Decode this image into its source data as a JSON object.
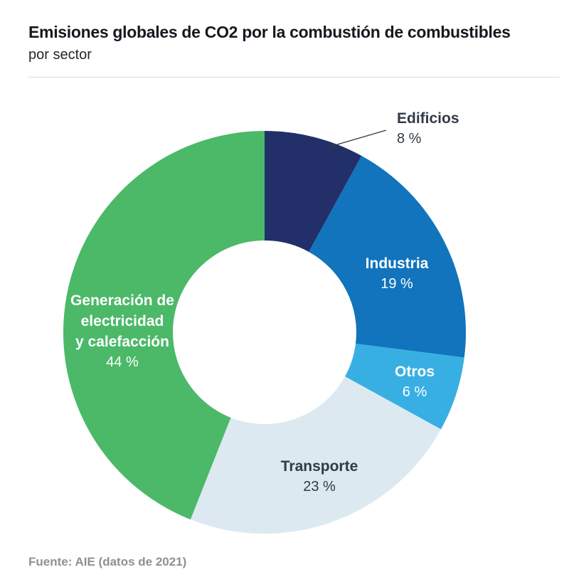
{
  "header": {
    "title": "Emisiones globales de CO2 por la combustión de combustibles",
    "subtitle": "por sector"
  },
  "chart_data": {
    "type": "pie",
    "variant": "donut",
    "title": "Emisiones globales de CO2 por la combustión de combustibles por sector",
    "unit": "%",
    "direction": "clockwise",
    "start_angle_deg": 0,
    "inner_radius_ratio": 0.456,
    "total": 100,
    "slices": [
      {
        "id": "edificios",
        "label": "Edificios",
        "value": 8,
        "value_label": "8 %",
        "color": "#222f68",
        "label_placement": "outside-callout",
        "label_color": "#2e3742"
      },
      {
        "id": "industria",
        "label": "Industria",
        "value": 19,
        "value_label": "19 %",
        "color": "#1174bc",
        "label_placement": "inside",
        "label_color": "#ffffff"
      },
      {
        "id": "otros",
        "label": "Otros",
        "value": 6,
        "value_label": "6 %",
        "color": "#38afe3",
        "label_placement": "inside",
        "label_color": "#ffffff"
      },
      {
        "id": "transporte",
        "label": "Transporte",
        "value": 23,
        "value_label": "23 %",
        "color": "#dce9f1",
        "label_placement": "inside",
        "label_color": "#31424b"
      },
      {
        "id": "generacion",
        "label": "Generación de electricidad y calefacción",
        "label_lines": [
          "Generación de",
          "electricidad",
          "y calefacción"
        ],
        "value": 44,
        "value_label": "44 %",
        "color": "#4bb968",
        "label_placement": "inside",
        "label_color": "#ffffff"
      }
    ]
  },
  "footer": {
    "source": "Fuente: AIE (datos de 2021)"
  }
}
